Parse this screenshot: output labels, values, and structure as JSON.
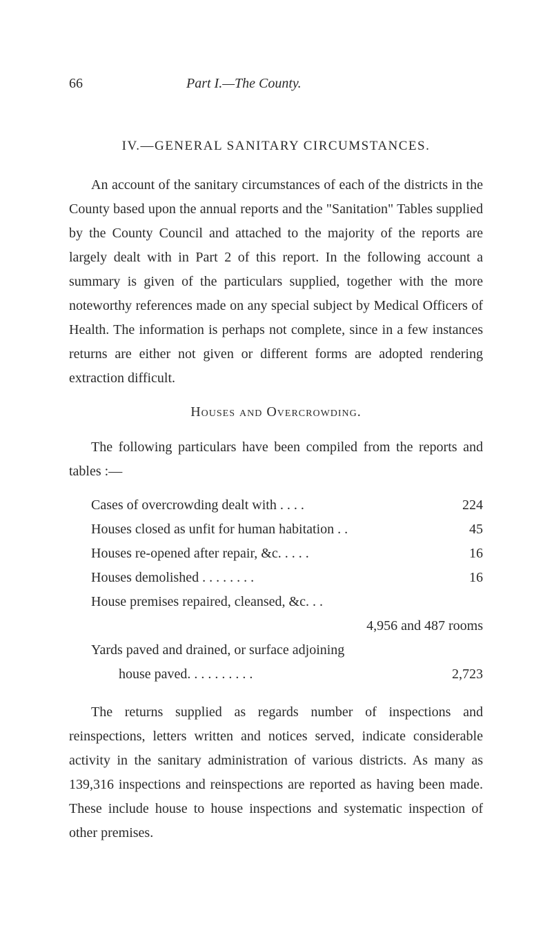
{
  "page_number": "66",
  "header_title_italic": "Part I.—The County.",
  "section_heading": "IV.—GENERAL SANITARY CIRCUMSTANCES.",
  "paragraph_1": "An account of the sanitary circumstances of each of the districts in the County based upon the annual reports and the \"Sanitation\" Tables supplied by the County Council and attached to the majority of the reports are largely dealt with in Part 2 of this report. In the following account a summary is given of the particulars supplied, together with the more noteworthy references made on any special subject by Medical Officers of Health. The information is perhaps not complete, since in a few instances returns are either not given or different forms are adopted rendering extraction difficult.",
  "subheading": "Houses and Overcrowding.",
  "paragraph_2": "The following particulars have been compiled from the reports and tables :—",
  "list": {
    "rows": [
      {
        "text": "Cases of overcrowding dealt with    . .    . .",
        "value": "224"
      },
      {
        "text": "Houses closed as unfit for human habitation . .",
        "value": "45"
      },
      {
        "text": "Houses re-opened after repair, &c.    . .    . .",
        "value": "16"
      },
      {
        "text": "Houses demolished    . .    . .    . .    . .",
        "value": "16"
      },
      {
        "text": "House premises repaired, cleansed, &c.    . .",
        "value": ""
      }
    ],
    "rooms_line": "4,956 and 487 rooms",
    "yards_line": "Yards paved and drained, or surface adjoining",
    "house_paved_text": "house paved. .    . .    . .    . .    . .",
    "house_paved_value": "2,723"
  },
  "paragraph_3": "The returns supplied as regards number of inspections and reinspections, letters written and notices served, indicate considerable activity in the sanitary administration of various districts. As many as 139,316 inspections and reinspections are reported as having been made. These include house to house inspections and systematic inspection of other premises."
}
